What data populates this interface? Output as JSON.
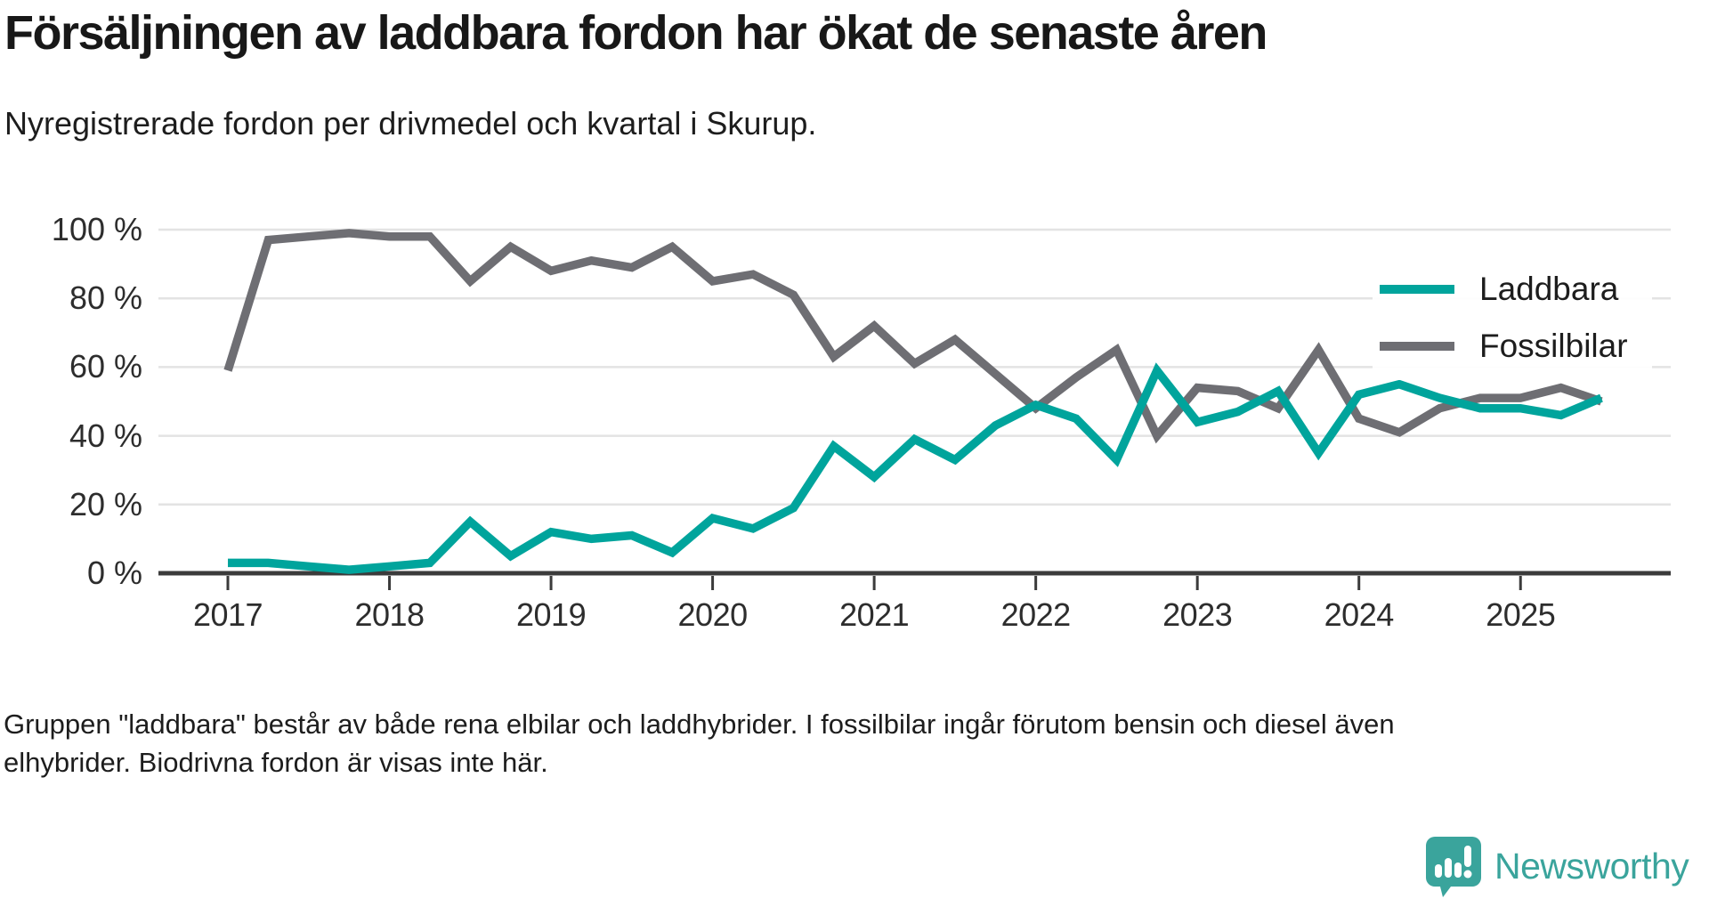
{
  "title": "Försäljningen av laddbara fordon har ökat de senaste åren",
  "subtitle": "Nyregistrerade fordon per drivmedel och kvartal i Skurup.",
  "legend": [
    {
      "label": "Laddbara",
      "color": "#00a49c"
    },
    {
      "label": "Fossilbilar",
      "color": "#6e6e73"
    }
  ],
  "y_axis": {
    "ticks": [
      "0 %",
      "20 %",
      "40 %",
      "60 %",
      "80 %",
      "100 %"
    ]
  },
  "x_axis": {
    "ticks": [
      "2017",
      "2018",
      "2019",
      "2020",
      "2021",
      "2022",
      "2023",
      "2024",
      "2025"
    ]
  },
  "footer": {
    "lines": [
      "Gruppen \"laddbara\" består av både rena elbilar och laddhybrider. I fossilbilar ingår förutom bensin och diesel även",
      "elhybrider. Biodrivna fordon är visas inte här."
    ]
  },
  "branding": {
    "name": "Newsworthy",
    "color": "#3aa49c"
  },
  "colors": {
    "laddbara": "#00a49c",
    "fossilbilar": "#6e6e73",
    "gridline": "#e3e3e3",
    "axis": "#3b3b3b",
    "text": "#1d1d1d"
  },
  "chart_data": {
    "type": "line",
    "unit": "%",
    "ylim": [
      0,
      100
    ],
    "y_tick_step": 20,
    "grid": true,
    "legend_position": "top-right-inside",
    "xlabel": "",
    "ylabel": "",
    "x": [
      "2017 Q1",
      "2017 Q2",
      "2017 Q3",
      "2017 Q4",
      "2018 Q1",
      "2018 Q2",
      "2018 Q3",
      "2018 Q4",
      "2019 Q1",
      "2019 Q2",
      "2019 Q3",
      "2019 Q4",
      "2020 Q1",
      "2020 Q2",
      "2020 Q3",
      "2020 Q4",
      "2021 Q1",
      "2021 Q2",
      "2021 Q3",
      "2021 Q4",
      "2022 Q1",
      "2022 Q2",
      "2022 Q3",
      "2022 Q4",
      "2023 Q1",
      "2023 Q2",
      "2023 Q3",
      "2023 Q4",
      "2024 Q1",
      "2024 Q2",
      "2024 Q3",
      "2024 Q4",
      "2025 Q1",
      "2025 Q2",
      "2025 Q3"
    ],
    "series": [
      {
        "name": "Laddbara",
        "color": "#00a49c",
        "values": [
          3,
          3,
          2,
          1,
          2,
          3,
          15,
          5,
          12,
          10,
          11,
          6,
          16,
          13,
          19,
          37,
          28,
          39,
          33,
          43,
          49,
          45,
          33,
          59,
          44,
          47,
          53,
          35,
          52,
          55,
          51,
          48,
          48,
          46,
          51
        ]
      },
      {
        "name": "Fossilbilar",
        "color": "#6e6e73",
        "values": [
          59,
          97,
          98,
          99,
          98,
          98,
          85,
          95,
          88,
          91,
          89,
          95,
          85,
          87,
          81,
          63,
          72,
          61,
          68,
          58,
          48,
          57,
          65,
          40,
          54,
          53,
          48,
          65,
          45,
          41,
          48,
          51,
          51,
          54,
          50
        ]
      }
    ]
  }
}
